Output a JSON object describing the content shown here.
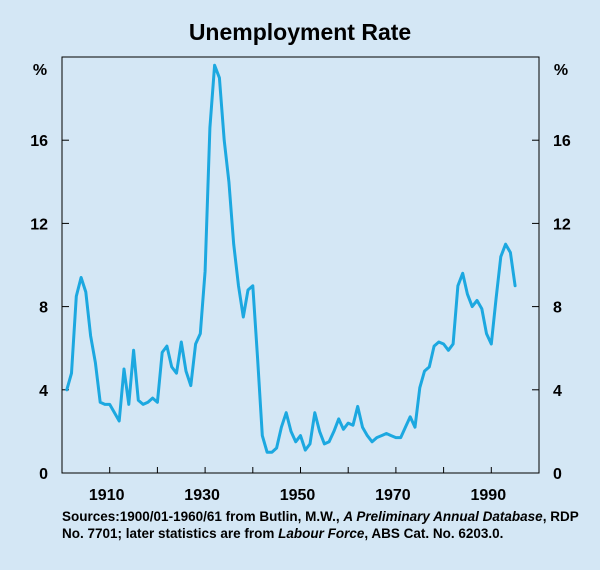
{
  "chart_data": {
    "type": "line",
    "title": "Unemployment Rate",
    "ylabel_left": "%",
    "ylabel_right": "%",
    "ylim": [
      0,
      20
    ],
    "xlim": [
      1900,
      2000
    ],
    "yticks": [
      0,
      4,
      8,
      12,
      16
    ],
    "xticks": [
      1910,
      1930,
      1950,
      1970,
      1990
    ],
    "ytick_labels": [
      "0",
      "4",
      "8",
      "12",
      "16"
    ],
    "xtick_labels": [
      "1910",
      "1930",
      "1950",
      "1970",
      "1990"
    ],
    "line_color": "#1ca8e0",
    "series": [
      {
        "name": "Unemployment rate",
        "x": [
          1901,
          1902,
          1903,
          1904,
          1905,
          1906,
          1907,
          1908,
          1909,
          1910,
          1911,
          1912,
          1913,
          1914,
          1915,
          1916,
          1917,
          1918,
          1919,
          1920,
          1921,
          1922,
          1923,
          1924,
          1925,
          1926,
          1927,
          1928,
          1929,
          1930,
          1931,
          1932,
          1933,
          1934,
          1935,
          1936,
          1937,
          1938,
          1939,
          1940,
          1941,
          1942,
          1943,
          1944,
          1945,
          1946,
          1947,
          1948,
          1949,
          1950,
          1951,
          1952,
          1953,
          1954,
          1955,
          1956,
          1957,
          1958,
          1959,
          1960,
          1961,
          1962,
          1963,
          1964,
          1965,
          1966,
          1967,
          1968,
          1969,
          1970,
          1971,
          1972,
          1973,
          1974,
          1975,
          1976,
          1977,
          1978,
          1979,
          1980,
          1981,
          1982,
          1983,
          1984,
          1985,
          1986,
          1987,
          1988,
          1989,
          1990,
          1991,
          1992,
          1993,
          1994,
          1995
        ],
        "values": [
          4.0,
          4.8,
          8.5,
          9.4,
          8.7,
          6.6,
          5.3,
          3.4,
          3.3,
          3.3,
          2.9,
          2.5,
          5.0,
          3.3,
          5.9,
          3.5,
          3.3,
          3.4,
          3.6,
          3.4,
          5.8,
          6.1,
          5.1,
          4.8,
          6.3,
          4.9,
          4.2,
          6.2,
          6.7,
          9.7,
          16.6,
          19.6,
          19.0,
          16.0,
          14.0,
          11.0,
          9.0,
          7.5,
          8.8,
          9.0,
          5.5,
          1.8,
          1.0,
          1.0,
          1.2,
          2.2,
          2.9,
          2.0,
          1.5,
          1.8,
          1.1,
          1.4,
          2.9,
          2.0,
          1.4,
          1.5,
          2.0,
          2.6,
          2.1,
          2.4,
          2.3,
          3.2,
          2.2,
          1.8,
          1.5,
          1.7,
          1.8,
          1.9,
          1.8,
          1.7,
          1.7,
          2.2,
          2.7,
          2.2,
          4.1,
          4.9,
          5.1,
          6.1,
          6.3,
          6.2,
          5.9,
          6.2,
          9.0,
          9.6,
          8.6,
          8.0,
          8.3,
          7.9,
          6.7,
          6.2,
          8.4,
          10.4,
          11.0,
          10.6,
          9.0
        ]
      }
    ],
    "source_prefix": "Sources:1900/01-1960/61 from Butlin, M.W., ",
    "source_italic_1": "A Preliminary Annual Database",
    "source_mid": ", RDP No. 7701; later statistics are from ",
    "source_italic_2": "Labour Force",
    "source_suffix": ", ABS Cat. No. 6203.0."
  }
}
